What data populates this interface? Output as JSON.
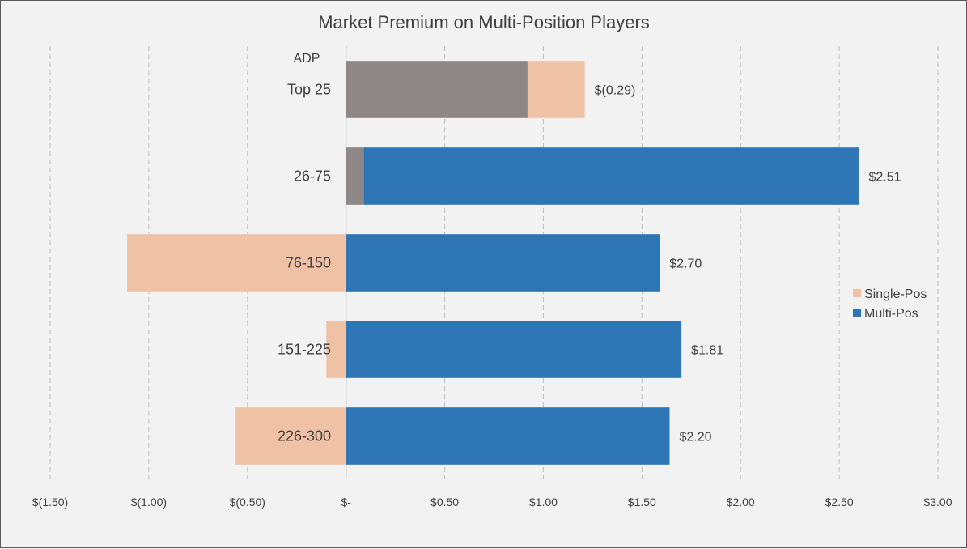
{
  "chart_data": {
    "type": "bar",
    "orientation": "horizontal",
    "stacked": true,
    "title": "Market Premium on Multi-Position Players",
    "category_axis_title": "ADP",
    "categories": [
      "Top 25",
      "26-75",
      "76-150",
      "151-225",
      "226-300"
    ],
    "series": [
      {
        "name": "Single-Pos",
        "color": "#f0c2a5",
        "values": [
          1.21,
          0.09,
          -1.11,
          -0.1,
          -0.56
        ]
      },
      {
        "name": "Multi-Pos",
        "color": "#2e75b6",
        "values": [
          0.92,
          2.6,
          1.59,
          1.7,
          1.64
        ]
      }
    ],
    "overlap_color": "#8f8686",
    "data_labels": [
      "$(0.29)",
      "$2.51",
      "$2.70",
      "$1.81",
      "$2.20"
    ],
    "xlim": [
      -1.5,
      3.0
    ],
    "x_ticks": [
      {
        "value": -1.5,
        "label": "$(1.50)"
      },
      {
        "value": -1.0,
        "label": "$(1.00)"
      },
      {
        "value": -0.5,
        "label": "$(0.50)"
      },
      {
        "value": 0,
        "label": "$-"
      },
      {
        "value": 0.5,
        "label": "$0.50"
      },
      {
        "value": 1.0,
        "label": "$1.00"
      },
      {
        "value": 1.5,
        "label": "$1.50"
      },
      {
        "value": 2.0,
        "label": "$2.00"
      },
      {
        "value": 2.5,
        "label": "$2.50"
      },
      {
        "value": 3.0,
        "label": "$3.00"
      }
    ],
    "gridlines": "vertical-dashed",
    "legend": "right"
  }
}
